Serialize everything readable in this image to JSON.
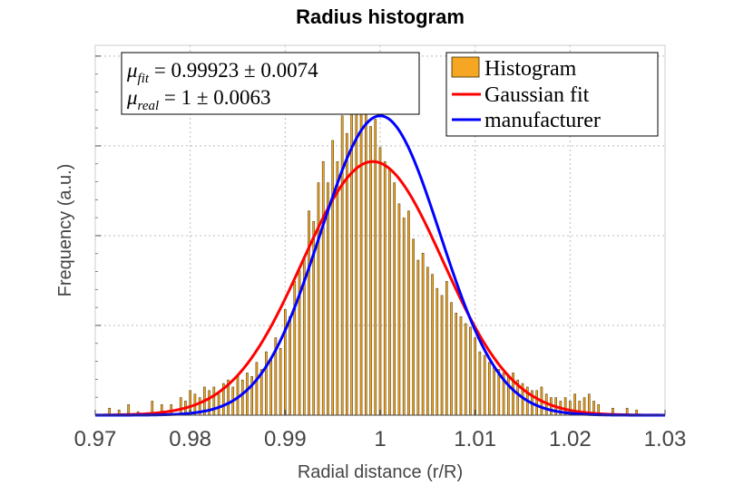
{
  "chart_data": {
    "type": "bar",
    "title": "Radius histogram",
    "xlabel": "Radial distance (r/R)",
    "ylabel": "Frequency (a.u.)",
    "xlim": [
      0.97,
      1.03
    ],
    "ylim": [
      0,
      1.05
    ],
    "xticks": [
      "0.97",
      "0.98",
      "0.99",
      "1",
      "1.01",
      "1.02",
      "1.03"
    ],
    "grid": true,
    "y_tick_labels_visible": false,
    "legend_position": "top-right",
    "legend": [
      {
        "label": "Histogram",
        "color": "#f5a623",
        "kind": "patch"
      },
      {
        "label": "Gaussian fit",
        "color": "#ff0000",
        "kind": "line"
      },
      {
        "label": "manufacturer",
        "color": "#0000ff",
        "kind": "line"
      }
    ],
    "annotations": [
      {
        "symbol": "μ",
        "sub": "fit",
        "rest": " = 0.99923 ± 0.0074"
      },
      {
        "symbol": "μ",
        "sub": "real",
        "rest": " = 1 ± 0.0063"
      }
    ],
    "histogram": {
      "color": "#f5a623",
      "bin_width": 0.0002,
      "bins_x": [
        0.9715,
        0.9725,
        0.9735,
        0.9745,
        0.976,
        0.977,
        0.978,
        0.979,
        0.9795,
        0.98,
        0.9805,
        0.981,
        0.9815,
        0.982,
        0.9825,
        0.983,
        0.9835,
        0.984,
        0.9845,
        0.985,
        0.9855,
        0.986,
        0.9865,
        0.987,
        0.9875,
        0.988,
        0.9885,
        0.989,
        0.9895,
        0.99,
        0.9905,
        0.991,
        0.9915,
        0.992,
        0.9925,
        0.993,
        0.9935,
        0.994,
        0.9945,
        0.995,
        0.9955,
        0.996,
        0.9965,
        0.997,
        0.9975,
        0.998,
        0.9985,
        0.999,
        0.9995,
        1.0,
        1.0005,
        1.001,
        1.0015,
        1.002,
        1.0025,
        1.003,
        1.0035,
        1.004,
        1.0045,
        1.005,
        1.0055,
        1.006,
        1.0065,
        1.007,
        1.0075,
        1.008,
        1.0085,
        1.009,
        1.0095,
        1.01,
        1.0105,
        1.011,
        1.0115,
        1.012,
        1.0125,
        1.013,
        1.0135,
        1.014,
        1.0145,
        1.015,
        1.0155,
        1.016,
        1.0165,
        1.017,
        1.0175,
        1.018,
        1.0185,
        1.019,
        1.0195,
        1.02,
        1.0205,
        1.021,
        1.0215,
        1.022,
        1.0225,
        1.023,
        1.0245,
        1.026,
        1.027
      ],
      "bins_y": [
        0.02,
        0.015,
        0.03,
        0.01,
        0.04,
        0.03,
        0.03,
        0.05,
        0.04,
        0.07,
        0.06,
        0.05,
        0.08,
        0.07,
        0.08,
        0.06,
        0.09,
        0.1,
        0.08,
        0.11,
        0.1,
        0.12,
        0.11,
        0.15,
        0.13,
        0.18,
        0.16,
        0.22,
        0.19,
        0.3,
        0.28,
        0.38,
        0.41,
        0.45,
        0.58,
        0.55,
        0.66,
        0.72,
        0.66,
        0.78,
        0.72,
        0.85,
        0.8,
        0.95,
        1.0,
        0.92,
        0.88,
        0.82,
        0.84,
        0.76,
        0.72,
        0.7,
        0.66,
        0.6,
        0.56,
        0.58,
        0.5,
        0.44,
        0.46,
        0.42,
        0.4,
        0.36,
        0.34,
        0.38,
        0.32,
        0.29,
        0.28,
        0.26,
        0.25,
        0.22,
        0.18,
        0.17,
        0.15,
        0.14,
        0.13,
        0.12,
        0.11,
        0.12,
        0.1,
        0.09,
        0.08,
        0.07,
        0.07,
        0.08,
        0.06,
        0.05,
        0.05,
        0.04,
        0.05,
        0.04,
        0.06,
        0.04,
        0.05,
        0.06,
        0.04,
        0.03,
        0.02,
        0.02,
        0.015
      ]
    },
    "series": [
      {
        "name": "Gaussian fit",
        "type": "line",
        "color": "#ff0000",
        "mu": 0.99923,
        "sigma": 0.0074,
        "peak": 0.72
      },
      {
        "name": "manufacturer",
        "type": "line",
        "color": "#0000ff",
        "mu": 1.0,
        "sigma": 0.0063,
        "peak": 0.85
      }
    ]
  }
}
